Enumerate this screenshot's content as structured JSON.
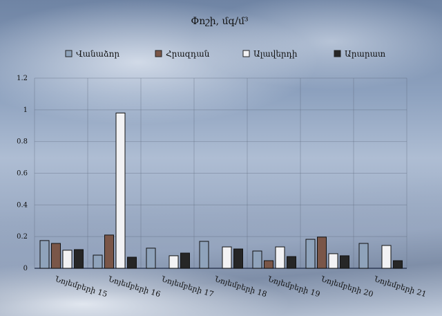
{
  "chart_data": {
    "type": "bar",
    "title": "Փոշի, մգ/մ³",
    "categories": [
      "Նոյեմբերի 15",
      "Նոյեմբերի 16",
      "Նոյեմբերի 17",
      "Նոյեմբերի 18",
      "Նոյեմբերի 19",
      "Նոյեմբերի 20",
      "Նոյեմբերի 21"
    ],
    "series": [
      {
        "name": "Վանաձոր",
        "color": "#8fa3bb",
        "values": [
          0.175,
          0.083,
          0.127,
          0.17,
          0.109,
          0.183,
          0.157
        ]
      },
      {
        "name": "Հրազդան",
        "color": "#7a5648",
        "values": [
          0.157,
          0.21,
          null,
          null,
          0.048,
          0.197,
          null
        ]
      },
      {
        "name": "Ալավերդի",
        "color": "#f2f2f4",
        "values": [
          0.114,
          0.98,
          0.079,
          0.135,
          0.135,
          0.092,
          0.144
        ]
      },
      {
        "name": "Արարատ",
        "color": "#262626",
        "values": [
          0.118,
          0.07,
          0.096,
          0.122,
          0.074,
          0.079,
          0.048
        ]
      }
    ],
    "yticks": [
      "0",
      "0.2",
      "0.4",
      "0.6",
      "0.8",
      "1",
      "1.2"
    ],
    "ylim": [
      0,
      1.2
    ],
    "grid": true,
    "legend": "top"
  }
}
